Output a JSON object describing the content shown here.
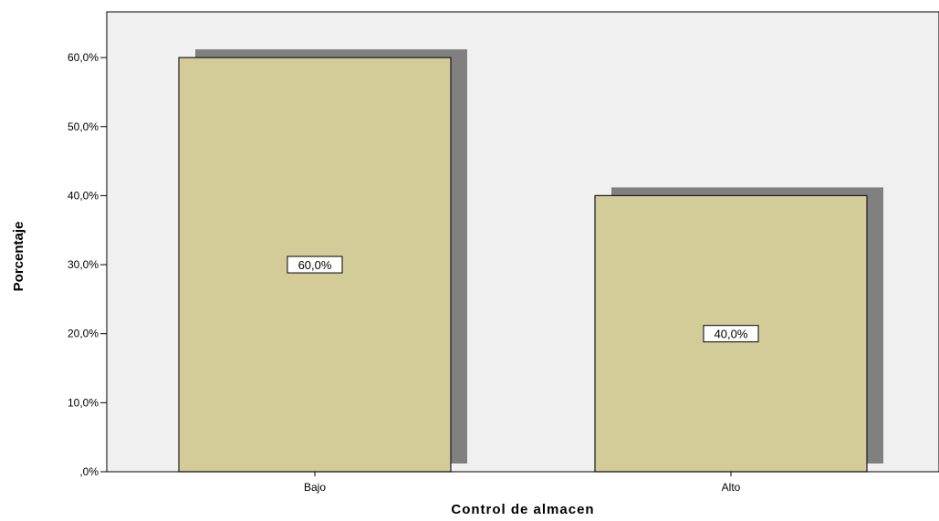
{
  "chart_data": {
    "type": "bar",
    "title": "",
    "xlabel": "Control de almacen",
    "ylabel": "Porcentaje",
    "categories": [
      "Bajo",
      "Alto"
    ],
    "values": [
      60.0,
      40.0
    ],
    "data_labels": [
      "60,0%",
      "40,0%"
    ],
    "ylim": [
      0,
      67
    ],
    "yticks": [
      0,
      10,
      20,
      30,
      40,
      50,
      60
    ],
    "ytick_labels": [
      ",0%",
      "10,0%",
      "20,0%",
      "30,0%",
      "40,0%",
      "50,0%",
      "60,0%"
    ],
    "grid": false,
    "legend": "none",
    "colors": {
      "bar_fill": "#d3cc98",
      "bar_stroke": "#1a1a1a",
      "shadow": "#808080",
      "plot_background": "#f0f0f0",
      "label_box_fill": "#ffffff"
    }
  }
}
